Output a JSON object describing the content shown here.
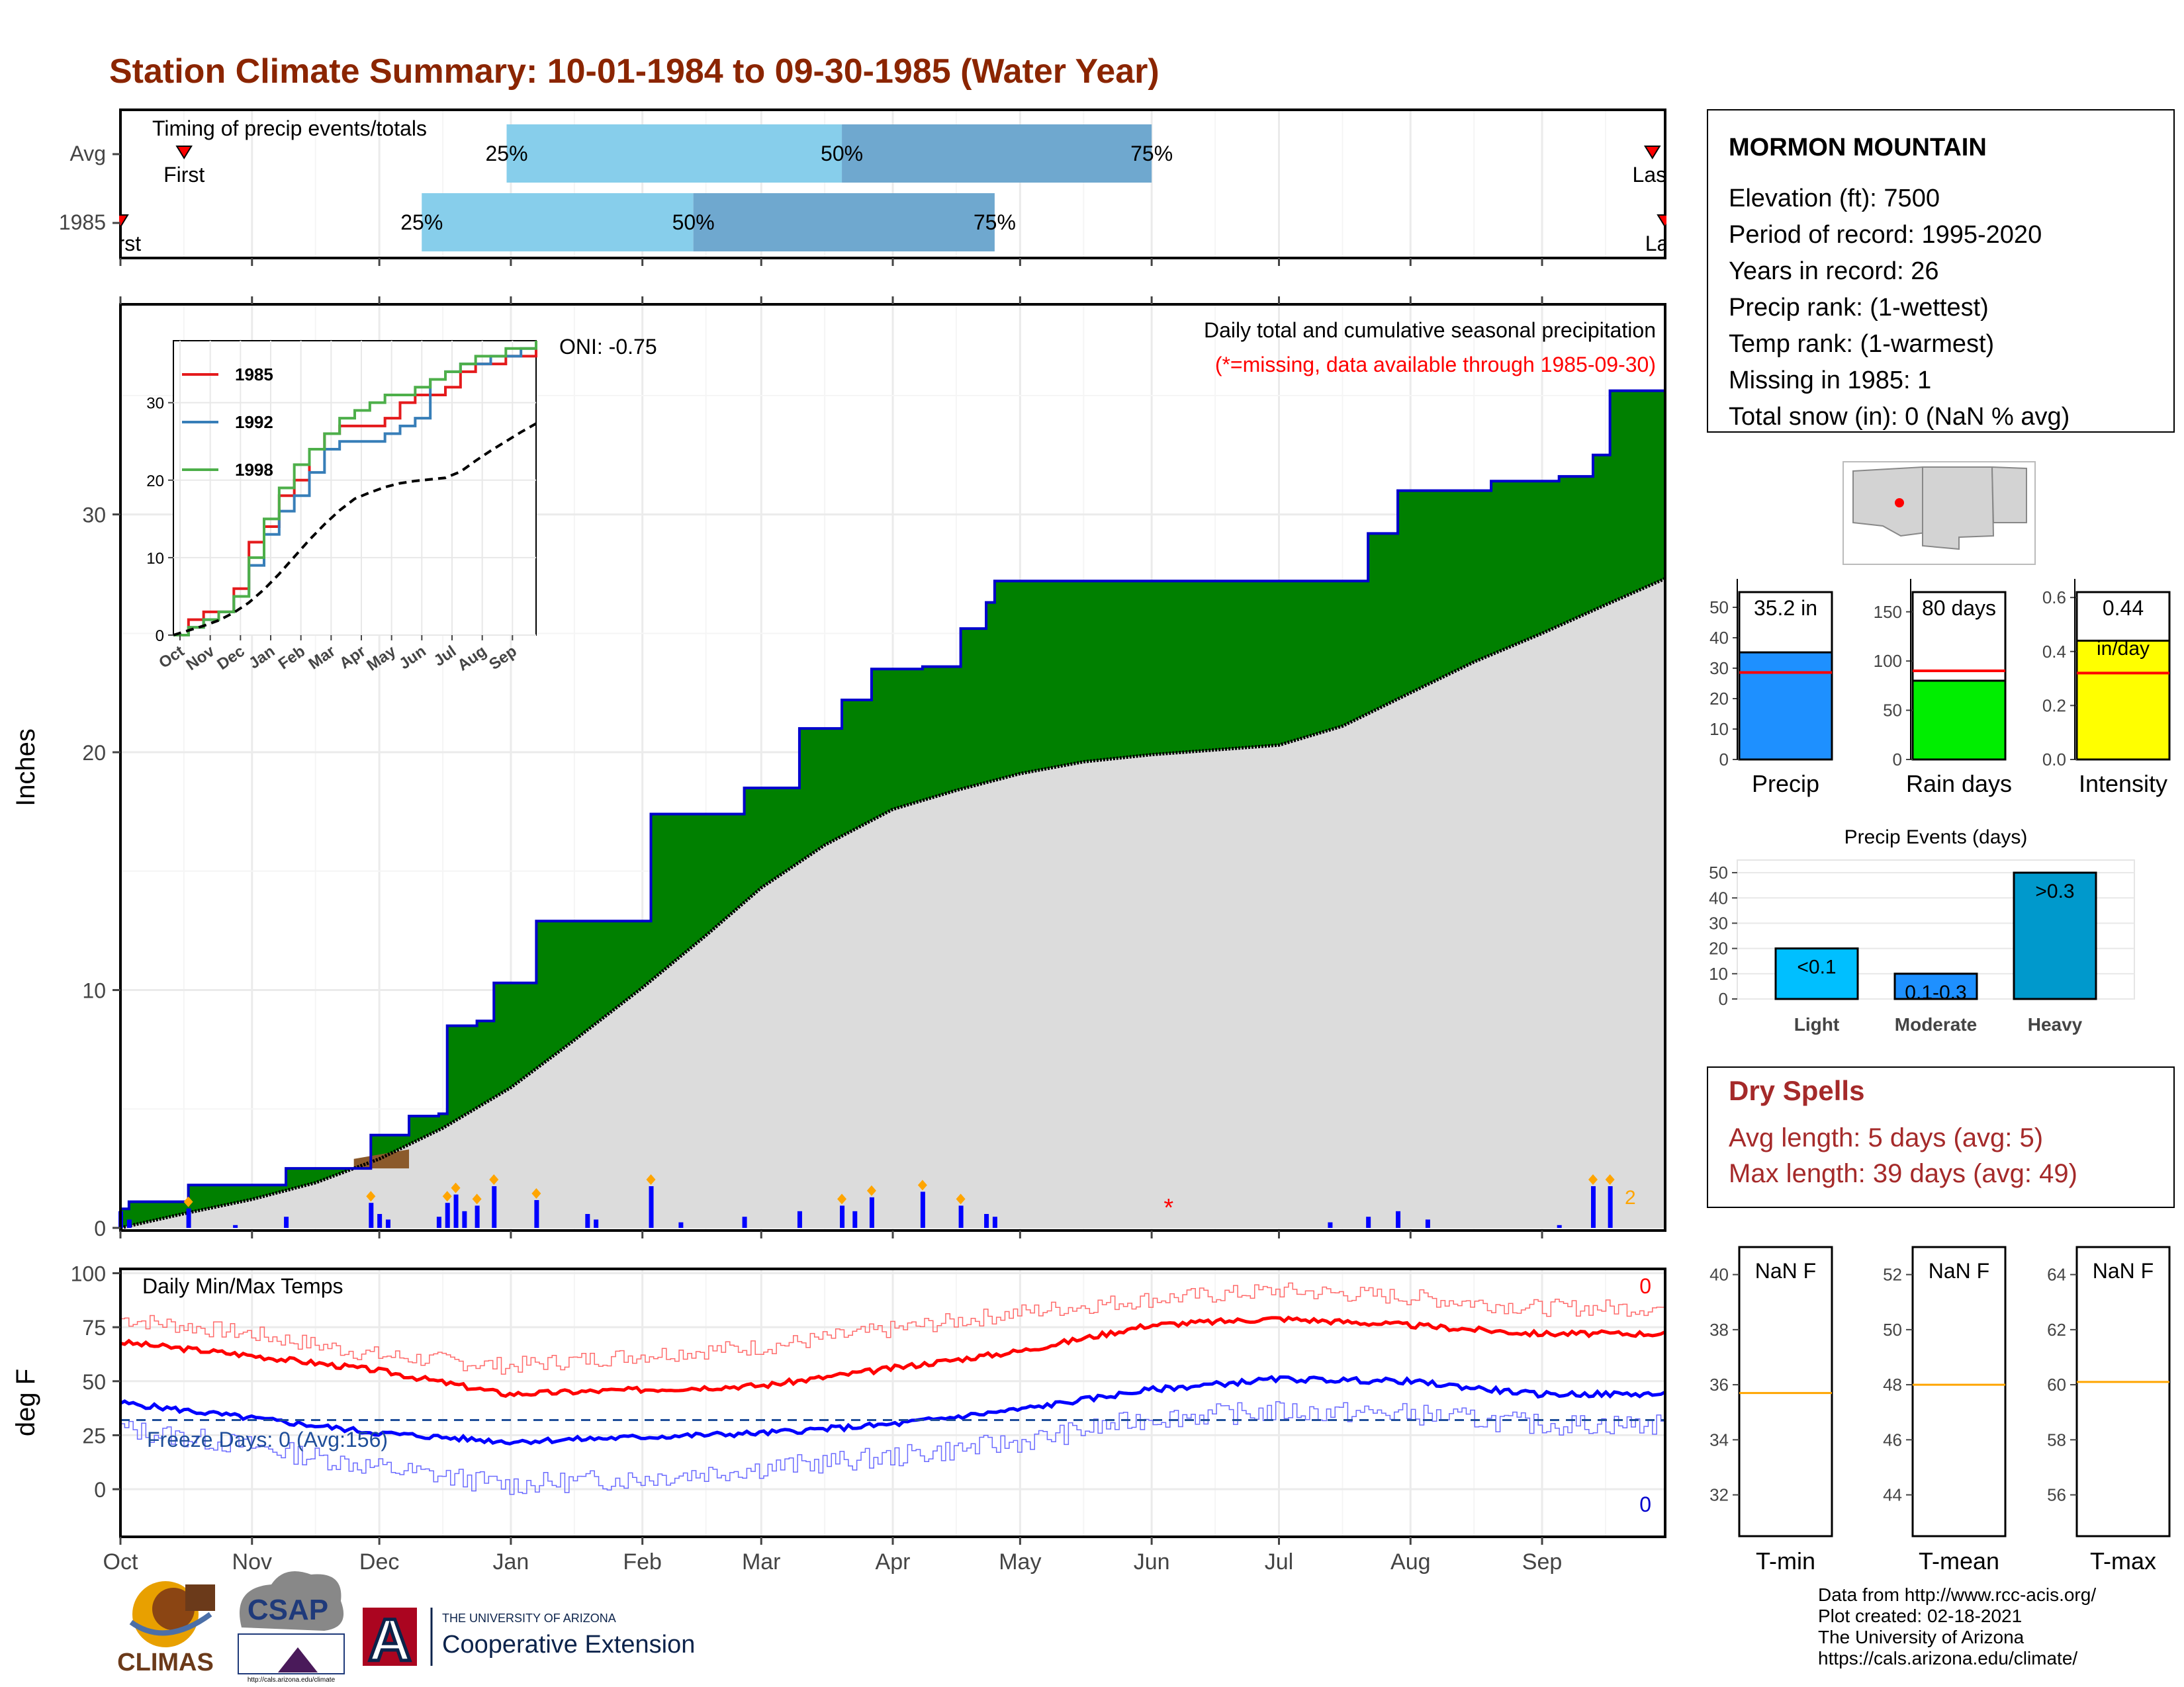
{
  "title": "Station Climate Summary: 10-01-1984 to 09-30-1985 (Water Year)",
  "colors": {
    "title": "#8B2500",
    "precip_fill": "#008000",
    "precip_line": "#0000CD",
    "avg_fill": "#DCDCDC",
    "deficit_fill": "#8B5A2B",
    "bar_light": "#87CEEB",
    "bar_dark": "#6FA8CF",
    "dry_spells": "#A52A2A"
  },
  "timing": {
    "title": "Timing of precip events/totals",
    "rows": [
      {
        "label": "Avg",
        "first_label": "First",
        "last_label": "Last",
        "p25": "25%",
        "p50": "50%",
        "p75": "75%"
      },
      {
        "label": "1985",
        "first_label": "First",
        "last_label": "Last",
        "p25": "25%",
        "p50": "50%",
        "p75": "75%"
      }
    ],
    "avg_dates": {
      "first": "1984-10-16",
      "p25": "1984-12-31",
      "p50": "1985-03-20",
      "p75": "1985-06-01",
      "last": "1985-09-27"
    },
    "yr_dates": {
      "first": "1984-10-01",
      "p25": "1984-12-11",
      "p50": "1985-02-13",
      "p75": "1985-04-25",
      "last": "1985-09-30"
    }
  },
  "main": {
    "ylabel": "Inches",
    "oni": "ONI: -0.75",
    "caption1": "Daily total and cumulative seasonal precipitation",
    "caption2": "(*=missing, data available through 1985-09-30)",
    "yticks": [
      0,
      10,
      20,
      30
    ],
    "missing_marker": "*",
    "count_label": "2"
  },
  "inset": {
    "yticks": [
      0,
      10,
      20,
      30
    ],
    "months": [
      "Oct",
      "Nov",
      "Dec",
      "Jan",
      "Feb",
      "Mar",
      "Apr",
      "May",
      "Jun",
      "Jul",
      "Aug",
      "Sep"
    ],
    "legend": [
      {
        "name": "1985",
        "color": "#E41A1C"
      },
      {
        "name": "1992",
        "color": "#377EB8"
      },
      {
        "name": "1998",
        "color": "#4DAF4A"
      }
    ]
  },
  "temps": {
    "title": "Daily Min/Max Temps",
    "ylabel": "deg F",
    "yticks": [
      0,
      25,
      50,
      75,
      100
    ],
    "freeze_days": "Freeze Days: 0 (Avg:156)",
    "max_count": "0",
    "min_count": "0",
    "freeze_line": 32
  },
  "x_months": [
    "Oct",
    "Nov",
    "Dec",
    "Jan",
    "Feb",
    "Mar",
    "Apr",
    "May",
    "Jun",
    "Jul",
    "Aug",
    "Sep"
  ],
  "station": {
    "name": "MORMON MOUNTAIN",
    "lines": [
      "Elevation (ft): 7500",
      "Period of record: 1995-2020",
      "Years in record: 26",
      "Precip rank:  (1-wettest)",
      "Temp rank:  (1-warmest)",
      "Missing in 1985: 1",
      "Total snow (in): 0 (NaN % avg)"
    ]
  },
  "summary_bars": [
    {
      "label": "Precip",
      "value_label": "35.2 in",
      "value": 35.2,
      "avg": 28.6,
      "color": "#1E90FF",
      "ticks": [
        0,
        10,
        20,
        30,
        40,
        50
      ],
      "max": 55
    },
    {
      "label": "Rain days",
      "value_label": "80 days",
      "value": 80,
      "avg": 90,
      "color": "#00EE00",
      "ticks": [
        0,
        50,
        100,
        150
      ],
      "max": 170
    },
    {
      "label": "Intensity",
      "value_label": "0.44",
      "unit_label": "in/day",
      "value": 0.44,
      "avg": 0.32,
      "color": "#FFFF00",
      "ticks": [
        "0.0",
        "0.2",
        "0.4",
        "0.6"
      ],
      "max": 0.62
    }
  ],
  "events": {
    "title": "Precip Events (days)",
    "categories": [
      "Light",
      "Moderate",
      "Heavy"
    ],
    "labels": [
      "<0.1",
      "0.1-0.3",
      ">0.3"
    ],
    "values": [
      20,
      10,
      50
    ],
    "ticks": [
      0,
      10,
      20,
      30,
      40,
      50
    ],
    "color_light": "#00BFFF",
    "color_mod": "#1E90FF",
    "color_heavy": "#0099CC"
  },
  "dry_spells": {
    "title": "Dry Spells",
    "avg_line": "Avg length: 5 days (avg: 5)",
    "max_line": "Max length: 39 days (avg: 49)"
  },
  "temp_boxes": [
    {
      "label": "T-min",
      "value_label": "NaN F",
      "ticks": [
        32,
        34,
        36,
        38,
        40
      ],
      "avg": 35.7
    },
    {
      "label": "T-mean",
      "value_label": "NaN F",
      "ticks": [
        44,
        46,
        48,
        50,
        52
      ],
      "avg": 48.0
    },
    {
      "label": "T-max",
      "value_label": "NaN F",
      "ticks": [
        56,
        58,
        60,
        62,
        64
      ],
      "avg": 60.1
    }
  ],
  "credits": [
    "Data from http://www.rcc-acis.org/",
    "Plot created: 02-18-2021",
    "The University of Arizona",
    "https://cals.arizona.edu/climate/"
  ],
  "logos": {
    "climas": "CLIMAS",
    "csap": "CSAP",
    "csap_url": "http://cals.arizona.edu/climate",
    "ua_line1": "THE UNIVERSITY OF ARIZONA",
    "ua_line2": "Cooperative Extension",
    "ua_letter": "A"
  },
  "chart_data": {
    "type": "area",
    "title": "Station Climate Summary: 10-01-1984 to 09-30-1985 (Water Year)",
    "ylabel": "Inches",
    "ylim": [
      0,
      38
    ],
    "xlim": [
      "1984-10-01",
      "1985-09-30"
    ],
    "series": [
      {
        "name": "1985",
        "dates": [
          "1984-10-01",
          "1984-10-03",
          "1984-10-17",
          "1984-11-09",
          "1984-11-29",
          "1984-12-08",
          "1984-12-15",
          "1984-12-17",
          "1984-12-24",
          "1984-12-28",
          "1985-01-07",
          "1985-01-21",
          "1985-02-03",
          "1985-02-10",
          "1985-02-25",
          "1985-03-10",
          "1985-03-20",
          "1985-03-27",
          "1985-04-08",
          "1985-04-17",
          "1985-04-23",
          "1985-04-25",
          "1985-06-01",
          "1985-07-13",
          "1985-07-22",
          "1985-07-29",
          "1985-08-20",
          "1985-09-05",
          "1985-09-13",
          "1985-09-17",
          "1985-09-30"
        ],
        "values": [
          0.8,
          1.1,
          1.8,
          2.5,
          3.9,
          4.7,
          4.8,
          8.5,
          8.7,
          10.3,
          12.9,
          12.9,
          17.4,
          17.4,
          18.5,
          21.0,
          22.2,
          23.5,
          23.6,
          25.2,
          26.3,
          27.2,
          27.2,
          27.2,
          29.2,
          31.0,
          31.4,
          31.6,
          32.5,
          35.2,
          35.2
        ]
      },
      {
        "name": "Avg",
        "dates": [
          "1984-10-01",
          "1984-10-16",
          "1984-11-01",
          "1984-11-16",
          "1984-12-01",
          "1984-12-16",
          "1985-01-01",
          "1985-01-16",
          "1985-02-01",
          "1985-02-16",
          "1985-03-01",
          "1985-03-16",
          "1985-04-01",
          "1985-04-16",
          "1985-05-01",
          "1985-05-16",
          "1985-06-01",
          "1985-06-16",
          "1985-07-01",
          "1985-07-16",
          "1985-08-01",
          "1985-08-16",
          "1985-09-01",
          "1985-09-16",
          "1985-09-30"
        ],
        "values": [
          0.0,
          0.6,
          1.2,
          1.9,
          2.9,
          4.2,
          5.9,
          7.9,
          10.1,
          12.3,
          14.3,
          16.1,
          17.6,
          18.4,
          19.1,
          19.6,
          19.9,
          20.1,
          20.3,
          21.1,
          22.5,
          23.8,
          25.0,
          26.2,
          27.3
        ]
      }
    ],
    "daily_precip": {
      "dates": [
        "1984-10-01",
        "1984-10-03",
        "1984-10-17",
        "1984-10-28",
        "1984-11-09",
        "1984-11-29",
        "1984-12-01",
        "1984-12-03",
        "1984-12-15",
        "1984-12-17",
        "1984-12-19",
        "1984-12-21",
        "1984-12-24",
        "1984-12-28",
        "1985-01-07",
        "1985-01-19",
        "1985-01-21",
        "1985-02-03",
        "1985-02-10",
        "1985-02-25",
        "1985-03-10",
        "1985-03-20",
        "1985-03-23",
        "1985-03-27",
        "1985-04-08",
        "1985-04-17",
        "1985-04-23",
        "1985-04-25",
        "1985-07-13",
        "1985-07-22",
        "1985-07-29",
        "1985-08-05",
        "1985-09-05",
        "1985-09-13",
        "1985-09-17"
      ],
      "values": [
        0.6,
        0.3,
        0.7,
        0.1,
        0.4,
        0.9,
        0.5,
        0.3,
        0.4,
        0.9,
        1.2,
        0.6,
        0.8,
        1.5,
        1.0,
        0.5,
        0.3,
        1.5,
        0.2,
        0.4,
        0.6,
        0.8,
        0.6,
        1.1,
        1.3,
        0.8,
        0.5,
        0.4,
        0.2,
        0.4,
        0.6,
        0.3,
        0.1,
        1.5,
        1.5
      ]
    },
    "temps": {
      "months": [
        "Oct",
        "Nov",
        "Dec",
        "Jan",
        "Feb",
        "Mar",
        "Apr",
        "May",
        "Jun",
        "Jul",
        "Aug",
        "Sep"
      ],
      "avg_max": [
        68,
        62,
        55,
        44,
        46,
        48,
        56,
        64,
        76,
        79,
        76,
        72
      ],
      "avg_min": [
        40,
        33,
        26,
        22,
        24,
        26,
        30,
        37,
        46,
        51,
        50,
        44
      ],
      "rec_max": [
        79,
        72,
        62,
        57,
        62,
        66,
        74,
        82,
        88,
        92,
        89,
        84
      ],
      "rec_min": [
        28,
        20,
        10,
        2,
        5,
        10,
        15,
        22,
        33,
        36,
        35,
        30
      ],
      "ylim": [
        -15,
        102
      ]
    },
    "inset_series": [
      {
        "name": "1985",
        "values": [
          0,
          2,
          3,
          3,
          6,
          12,
          14,
          18,
          20,
          24,
          26,
          27,
          27,
          27,
          28,
          30,
          31,
          31,
          32,
          34,
          35,
          35,
          36,
          36,
          37
        ]
      },
      {
        "name": "1992",
        "values": [
          0,
          1,
          2,
          3,
          5,
          9,
          13,
          16,
          18,
          21,
          24,
          25,
          25,
          25,
          26,
          27,
          28,
          33,
          34,
          35,
          35,
          36,
          36,
          37,
          37
        ]
      },
      {
        "name": "1998",
        "values": [
          0,
          1,
          2,
          3,
          5,
          10,
          15,
          19,
          22,
          24,
          26,
          28,
          29,
          30,
          31,
          31,
          32,
          33,
          34,
          35,
          36,
          36,
          37,
          37,
          38
        ]
      },
      {
        "name": "avg",
        "values": [
          0,
          0.6,
          1.2,
          1.9,
          2.9,
          4.2,
          5.9,
          7.9,
          10.1,
          12.3,
          14.3,
          16.1,
          17.6,
          18.4,
          19.1,
          19.6,
          19.9,
          20.1,
          20.3,
          21.1,
          22.5,
          23.8,
          25.0,
          26.2,
          27.3
        ]
      }
    ]
  }
}
